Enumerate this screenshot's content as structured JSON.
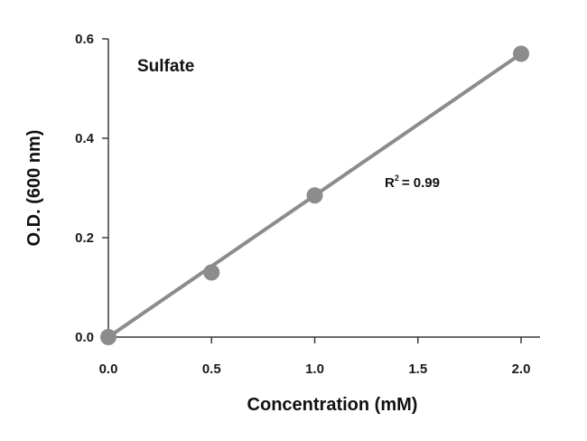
{
  "chart_data": {
    "type": "scatter",
    "title": "",
    "subtitle": "",
    "xlabel": "Concentration (mM)",
    "ylabel": "O.D. (600 nm)",
    "xlim": [
      0.0,
      2.0
    ],
    "ylim": [
      0.0,
      0.6
    ],
    "x_ticks": [
      "0.0",
      "0.5",
      "1.0",
      "1.5",
      "2.0"
    ],
    "y_ticks": [
      "0.0",
      "0.2",
      "0.4",
      "0.6"
    ],
    "grid": false,
    "legend": "none",
    "series": [
      {
        "x": [
          0.0,
          0.5,
          1.0,
          2.0
        ],
        "y": [
          0.0,
          0.13,
          0.285,
          0.57
        ],
        "color": "#8c8c8c",
        "trendline": "linear"
      }
    ],
    "trendline": {
      "x": [
        0.0,
        2.0
      ],
      "y": [
        0.0,
        0.57
      ],
      "color": "#8c8c8c"
    },
    "annotations": {
      "label": "Sulfate",
      "r_squared_prefix": "R",
      "r_squared_exponent": "2",
      "r_squared_value": "= 0.99"
    }
  }
}
